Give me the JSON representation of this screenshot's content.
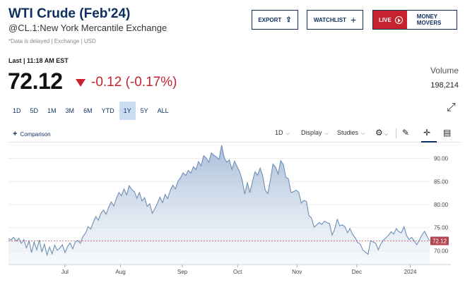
{
  "header": {
    "title": "WTI Crude (Feb'24)",
    "subtitle": "@CL.1:New York Mercantile Exchange",
    "delayed": "*Data is delayed | Exchange | USD"
  },
  "actions": {
    "export": "EXPORT",
    "watchlist": "WATCHLIST",
    "live": "LIVE",
    "money_movers": "MONEY MOVERS"
  },
  "quote": {
    "last_label": "Last | 11:18 AM EST",
    "price": "72.12",
    "change": "-0.12 (-0.17%)",
    "volume_label": "Volume",
    "volume": "198,214"
  },
  "ranges": [
    "1D",
    "5D",
    "1M",
    "3M",
    "6M",
    "YTD",
    "1Y",
    "5Y",
    "ALL"
  ],
  "active_range": "1Y",
  "toolbar": {
    "comparison": "Comparison",
    "interval": "1D",
    "display": "Display",
    "studies": "Studies"
  },
  "colors": {
    "brand": "#0c2f5f",
    "negative": "#c6232f",
    "line": "#6e8fb8",
    "range_active": "#c9dcf1"
  },
  "chart_data": {
    "type": "area",
    "x_labels": [
      "Jul",
      "Aug",
      "Sep",
      "Oct",
      "Nov",
      "Dec",
      "2024"
    ],
    "y_ticks": [
      "70.00",
      "75.00",
      "80.00",
      "85.00",
      "90.00"
    ],
    "ylim": [
      67,
      93
    ],
    "last_value": 72.12,
    "last_label": "72.12",
    "series": [
      {
        "values": [
          72.6,
          72.3,
          72.9,
          72.1,
          72.7,
          71.6,
          72.4,
          70.6,
          72.1,
          69.6,
          71.9,
          70.2,
          72.3,
          69.8,
          71.4,
          69.1,
          70.8,
          69.3,
          71.2,
          70.1,
          70.6,
          71.3,
          69.6,
          70.9,
          71.7,
          70.4,
          71.9,
          72.2,
          71.6,
          73.1,
          73.8,
          75.2,
          74.7,
          76.1,
          77.4,
          76.6,
          78.1,
          78.8,
          77.9,
          79.4,
          80.6,
          79.7,
          81.3,
          82.6,
          81.9,
          83.4,
          82.1,
          84.1,
          83.3,
          82.8,
          81.4,
          82.6,
          80.8,
          81.5,
          79.6,
          80.2,
          78.1,
          79.1,
          80.3,
          81.6,
          80.4,
          82.2,
          81.3,
          83.1,
          84.2,
          83.4,
          85.1,
          85.8,
          86.9,
          86.3,
          87.4,
          86.8,
          88.2,
          87.6,
          89.3,
          88.4,
          90.6,
          90.1,
          89.2,
          91.2,
          90.7,
          90.3,
          89.8,
          92.9,
          90.1,
          89.2,
          89.7,
          87.6,
          89.4,
          88.3,
          87.1,
          85.3,
          82.3,
          84.8,
          82.6,
          84.9,
          87.1,
          86.4,
          87.9,
          86.2,
          83.1,
          82.4,
          85.4,
          88.8,
          88.1,
          86.6,
          89.5,
          88.7,
          85.9,
          85.6,
          82.6,
          82.8,
          83.1,
          82.7,
          80.3,
          80.9,
          80.7,
          77.6,
          77.1,
          75.1,
          75.6,
          76.1,
          75.7,
          76.4,
          76.1,
          75.9,
          73.4,
          74.6,
          76.8,
          75.4,
          75.6,
          75.2,
          73.9,
          74.8,
          73.5,
          72.8,
          71.8,
          71.4,
          70.1,
          69.7,
          69.2,
          72.2,
          71.9,
          71.6,
          70.2,
          71.5,
          72.3,
          72.8,
          73.4,
          74.1,
          73.6,
          74.8,
          74.1,
          73.9,
          75.2,
          73.3,
          72.4,
          72.9,
          72.1,
          71.3,
          72.3,
          73.4,
          74.2,
          73.1,
          72.12
        ]
      }
    ]
  }
}
